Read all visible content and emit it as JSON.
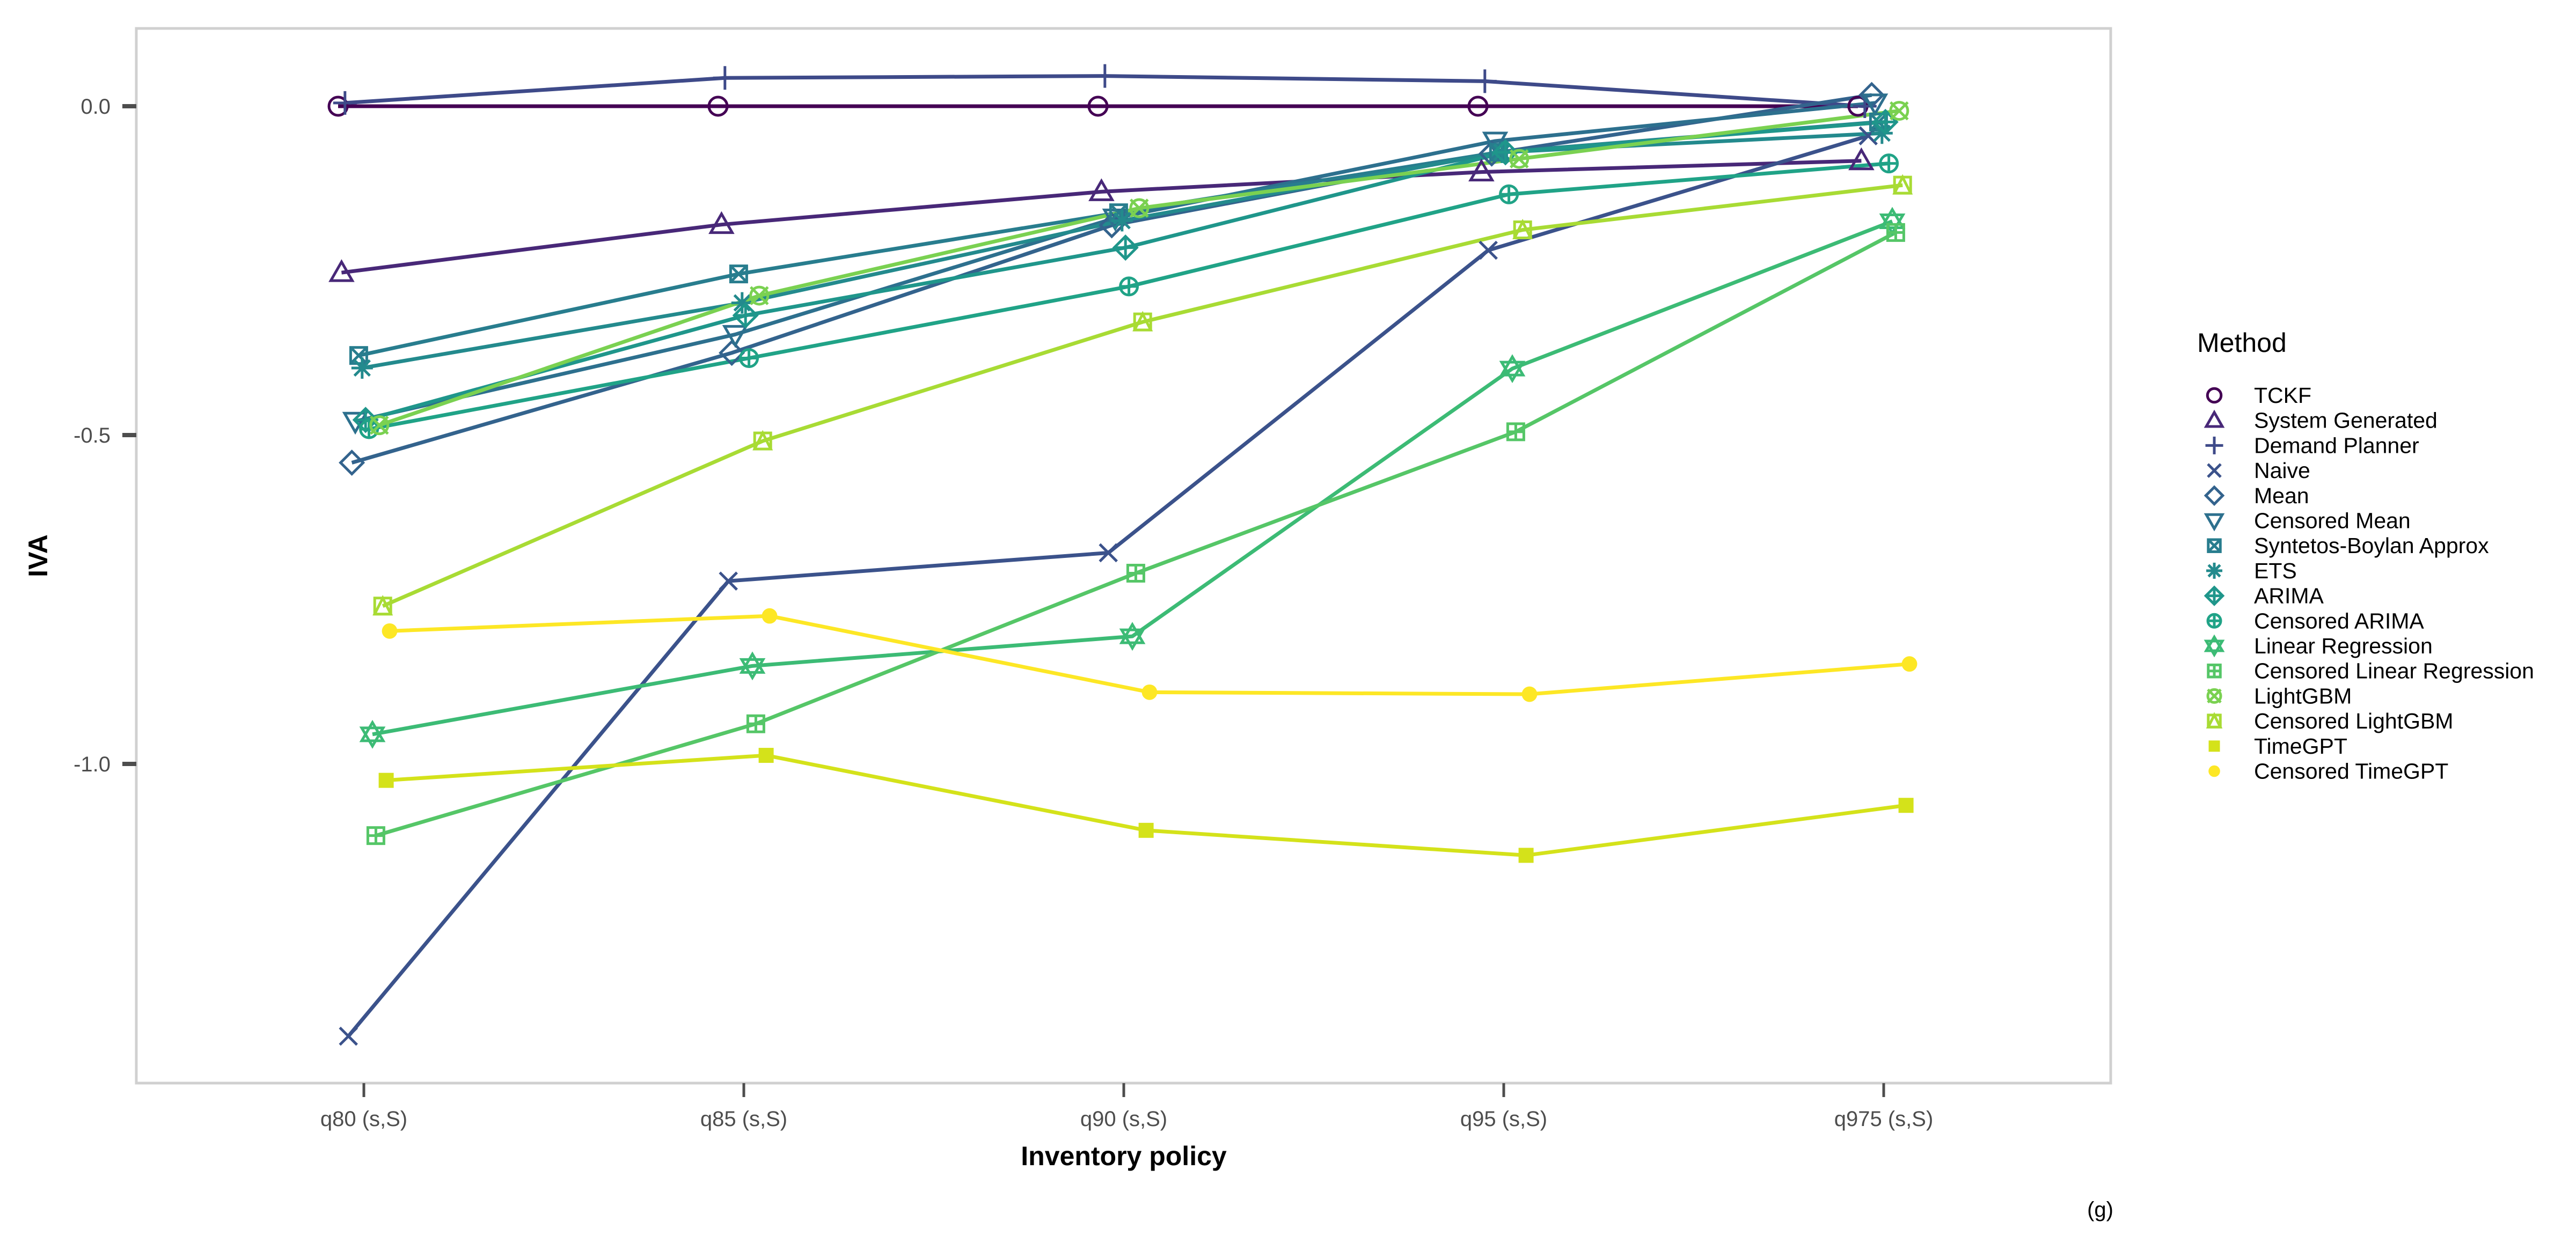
{
  "chart_data": {
    "type": "line",
    "title": "",
    "xlabel": "Inventory policy",
    "ylabel": "IVA",
    "panel_tag": "(g)",
    "categories": [
      "q80 (s,S)",
      "q85 (s,S)",
      "q90 (s,S)",
      "q95 (s,S)",
      "q975 (s,S)"
    ],
    "y_ticks": [
      {
        "value": 0.0,
        "label": "0.0"
      },
      {
        "value": -0.5,
        "label": "-0.5"
      },
      {
        "value": -1.0,
        "label": "-1.0"
      }
    ],
    "ylim": [
      -1.48,
      0.12
    ],
    "grid": false,
    "legend": {
      "title": "Method",
      "position": "right"
    },
    "series": [
      {
        "name": "TCKF",
        "color": "#440154",
        "shape": "circle-open",
        "values": [
          0.0,
          0.0,
          0.0,
          0.0,
          0.0
        ]
      },
      {
        "name": "System Generated",
        "color": "#482878",
        "shape": "triangle-open",
        "values": [
          -0.253,
          -0.18,
          -0.13,
          -0.1,
          -0.083
        ]
      },
      {
        "name": "Demand Planner",
        "color": "#3E4A89",
        "shape": "plus",
        "values": [
          0.005,
          0.043,
          0.046,
          0.038,
          0.0
        ]
      },
      {
        "name": "Naive",
        "color": "#3B528B",
        "shape": "cross",
        "values": [
          -1.414,
          -0.722,
          -0.679,
          -0.219,
          -0.045
        ]
      },
      {
        "name": "Mean",
        "color": "#33638D",
        "shape": "diamond-open",
        "values": [
          -0.542,
          -0.375,
          -0.181,
          -0.072,
          0.017
        ]
      },
      {
        "name": "Censored Mean",
        "color": "#2D708E",
        "shape": "triangle-down-open",
        "values": [
          -0.479,
          -0.347,
          -0.17,
          -0.053,
          0.005
        ]
      },
      {
        "name": "Syntetos-Boylan Approx",
        "color": "#287D8E",
        "shape": "square-cross",
        "values": [
          -0.379,
          -0.255,
          -0.162,
          -0.07,
          -0.024
        ]
      },
      {
        "name": "ETS",
        "color": "#238A8D",
        "shape": "asterisk",
        "values": [
          -0.398,
          -0.299,
          -0.174,
          -0.07,
          -0.041
        ]
      },
      {
        "name": "ARIMA",
        "color": "#1F968B",
        "shape": "diamond-plus",
        "values": [
          -0.477,
          -0.318,
          -0.215,
          -0.07,
          -0.024
        ]
      },
      {
        "name": "Censored ARIMA",
        "color": "#20A387",
        "shape": "circle-plus",
        "values": [
          -0.491,
          -0.383,
          -0.274,
          -0.134,
          -0.087
        ]
      },
      {
        "name": "Linear Regression",
        "color": "#3CBB75",
        "shape": "triangle-updown",
        "values": [
          -0.955,
          -0.851,
          -0.806,
          -0.399,
          -0.175
        ]
      },
      {
        "name": "Censored Linear Regression",
        "color": "#55C667",
        "shape": "square-plus",
        "values": [
          -1.109,
          -0.939,
          -0.71,
          -0.495,
          -0.192
        ]
      },
      {
        "name": "LightGBM",
        "color": "#7AD151",
        "shape": "circle-cross",
        "values": [
          -0.485,
          -0.288,
          -0.155,
          -0.08,
          -0.007
        ]
      },
      {
        "name": "Censored LightGBM",
        "color": "#A8DB34",
        "shape": "square-triangle",
        "values": [
          -0.76,
          -0.509,
          -0.328,
          -0.188,
          -0.12
        ]
      },
      {
        "name": "TimeGPT",
        "color": "#D4E21A",
        "shape": "square-filled",
        "values": [
          -1.025,
          -0.987,
          -1.101,
          -1.139,
          -1.063
        ]
      },
      {
        "name": "Censored TimeGPT",
        "color": "#FDE725",
        "shape": "circle-filled",
        "values": [
          -0.798,
          -0.775,
          -0.891,
          -0.894,
          -0.848
        ]
      }
    ]
  }
}
